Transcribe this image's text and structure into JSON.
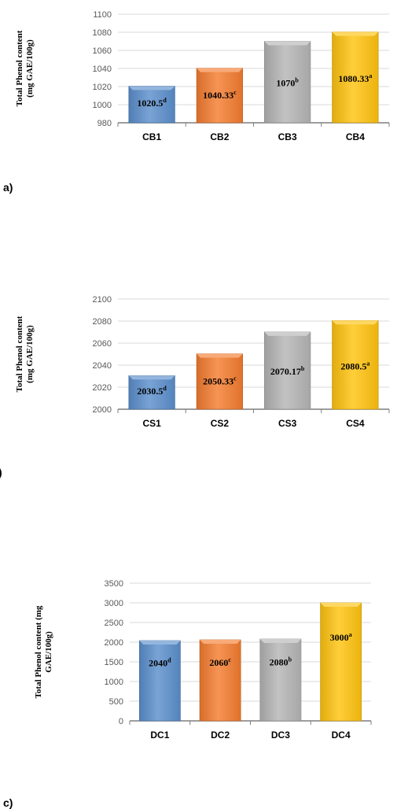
{
  "chart_data": [
    {
      "type": "bar",
      "panel": "a)",
      "ylabel": "Total Phenol content\n(mg GAE/100g)",
      "categories": [
        "CB1",
        "CB2",
        "CB3",
        "CB4"
      ],
      "values": [
        1020.5,
        1040.33,
        1070,
        1080.33
      ],
      "value_labels": [
        "1020.5",
        "1040.33",
        "1070",
        "1080.33"
      ],
      "significance": [
        "d",
        "c",
        "b",
        "a"
      ],
      "ylim": [
        980,
        1100
      ],
      "yticks": [
        980,
        1000,
        1020,
        1040,
        1060,
        1080,
        1100
      ],
      "colors": [
        "#5B8FCC",
        "#F47C30",
        "#B5B5B5",
        "#FFC30F"
      ],
      "grid": true
    },
    {
      "type": "bar",
      "panel": ")",
      "ylabel": "Total Phenol content\n(mg GAE/100g)",
      "categories": [
        "CS1",
        "CS2",
        "CS3",
        "CS4"
      ],
      "values": [
        2030.5,
        2050.33,
        2070.17,
        2080.5
      ],
      "value_labels": [
        "2030.5",
        "2050.33",
        "2070.17",
        "2080.5"
      ],
      "significance": [
        "d",
        "c",
        "b",
        "a"
      ],
      "ylim": [
        2000,
        2100
      ],
      "yticks": [
        2000,
        2020,
        2040,
        2060,
        2080,
        2100
      ],
      "colors": [
        "#5B8FCC",
        "#F47C30",
        "#B5B5B5",
        "#FFC30F"
      ],
      "grid": true
    },
    {
      "type": "bar",
      "panel": "c)",
      "ylabel": "Total Phenol content (mg\nGAE/100g)",
      "categories": [
        "DC1",
        "DC2",
        "DC3",
        "DC4"
      ],
      "values": [
        2040,
        2060,
        2080,
        3000
      ],
      "value_labels": [
        "2040",
        "2060",
        "2080",
        "3000"
      ],
      "significance": [
        "d",
        "c",
        "b",
        "a"
      ],
      "ylim": [
        0,
        3500
      ],
      "yticks": [
        0,
        500,
        1000,
        1500,
        2000,
        2500,
        3000,
        3500
      ],
      "colors": [
        "#5B8FCC",
        "#F47C30",
        "#B5B5B5",
        "#FFC30F"
      ],
      "grid": true
    }
  ]
}
